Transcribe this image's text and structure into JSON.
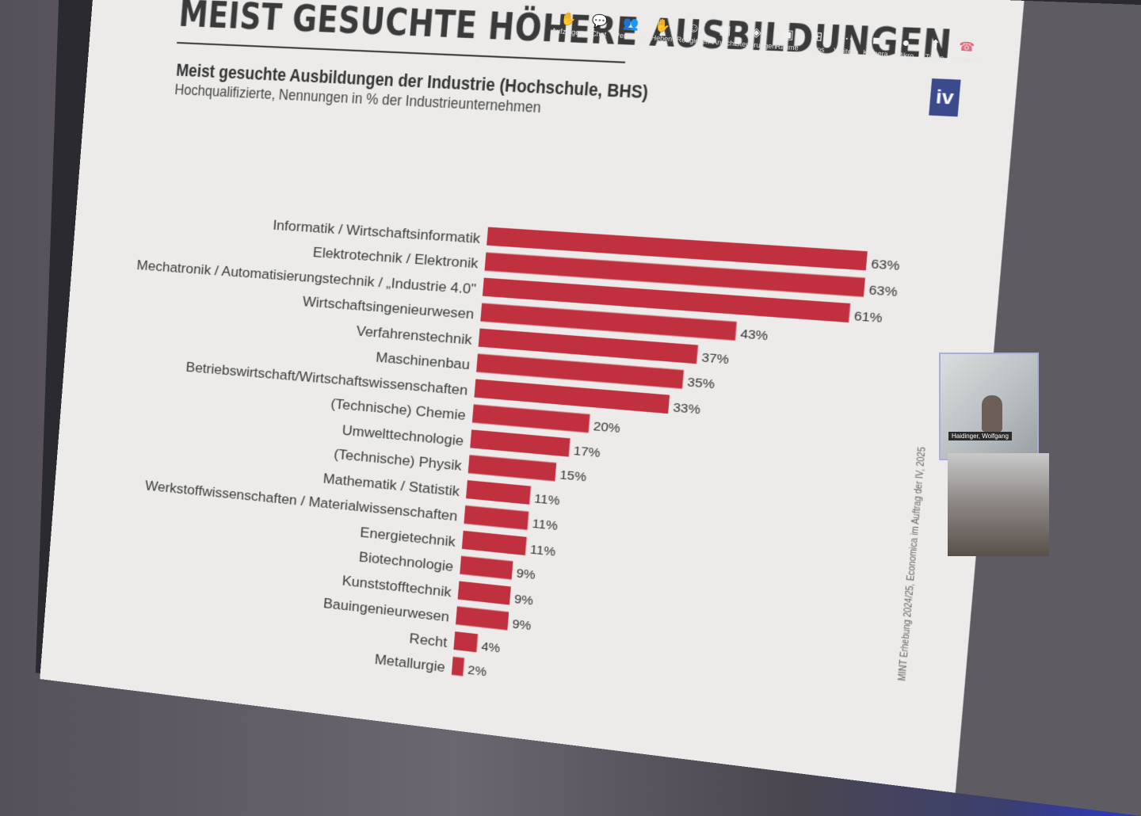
{
  "slide": {
    "title": "MEIST GESUCHTE HÖHERE AUSBILDUNGEN",
    "subtitle": "Meist gesuchte Ausbildungen der Industrie (Hochschule, BHS)",
    "subsubtitle": "Hochqualifizierte, Nennungen in % der Industrieunternehmen",
    "logo_text": "iv",
    "source_note": "MINT Erhebung 2024/25, Economica im Auftrag der IV, 2025"
  },
  "teams": {
    "toolbar": [
      {
        "label": "Aufzeigen",
        "icon": "raise-hand-icon"
      },
      {
        "label": "Chat",
        "icon": "chat-icon"
      },
      {
        "label": "Personen",
        "icon": "people-icon"
      },
      {
        "label": "Heben",
        "icon": "hand-icon"
      },
      {
        "label": "Reagieren",
        "icon": "smiley-icon"
      },
      {
        "label": "Ansicht",
        "icon": "grid-icon"
      },
      {
        "label": "Steuerungen",
        "icon": "shield-icon"
      },
      {
        "label": "Räume",
        "icon": "rooms-icon"
      },
      {
        "label": "Apps",
        "icon": "apps-icon"
      },
      {
        "label": "Weitere",
        "icon": "more-icon"
      },
      {
        "label": "Kamera",
        "icon": "camera-icon"
      },
      {
        "label": "Mikro",
        "icon": "mic-icon"
      },
      {
        "label": "Teilen",
        "icon": "share-icon"
      },
      {
        "label": "Verlassen",
        "icon": "hangup-icon"
      }
    ],
    "participant_name": "Haidinger, Wolfgang"
  },
  "chart_data": {
    "type": "bar",
    "orientation": "horizontal",
    "categories": [
      "Informatik / Wirtschaftsinformatik",
      "Elektrotechnik / Elektronik",
      "Mechatronik / Automatisierungstechnik / „Industrie 4.0\"",
      "Wirtschaftsingenieurwesen",
      "Verfahrenstechnik",
      "Maschinenbau",
      "Betriebswirtschaft/Wirtschaftswissenschaften",
      "(Technische) Chemie",
      "Umwelttechnologie",
      "(Technische) Physik",
      "Mathematik / Statistik",
      "Werkstoffwissenschaften / Materialwissenschaften",
      "Energietechnik",
      "Biotechnologie",
      "Kunststofftechnik",
      "Bauingenieurwesen",
      "Recht",
      "Metallurgie"
    ],
    "values": [
      63,
      63,
      61,
      43,
      37,
      35,
      33,
      20,
      17,
      15,
      11,
      11,
      11,
      9,
      9,
      9,
      4,
      2
    ],
    "data_labels": [
      "63%",
      "63%",
      "61%",
      "43%",
      "37%",
      "35%",
      "33%",
      "20%",
      "17%",
      "15%",
      "11%",
      "11%",
      "11%",
      "9%",
      "9%",
      "9%",
      "4%",
      "2%"
    ],
    "xlim": [
      0,
      63
    ],
    "bar_color": "#c1303f",
    "grid": false,
    "legend": "none"
  }
}
